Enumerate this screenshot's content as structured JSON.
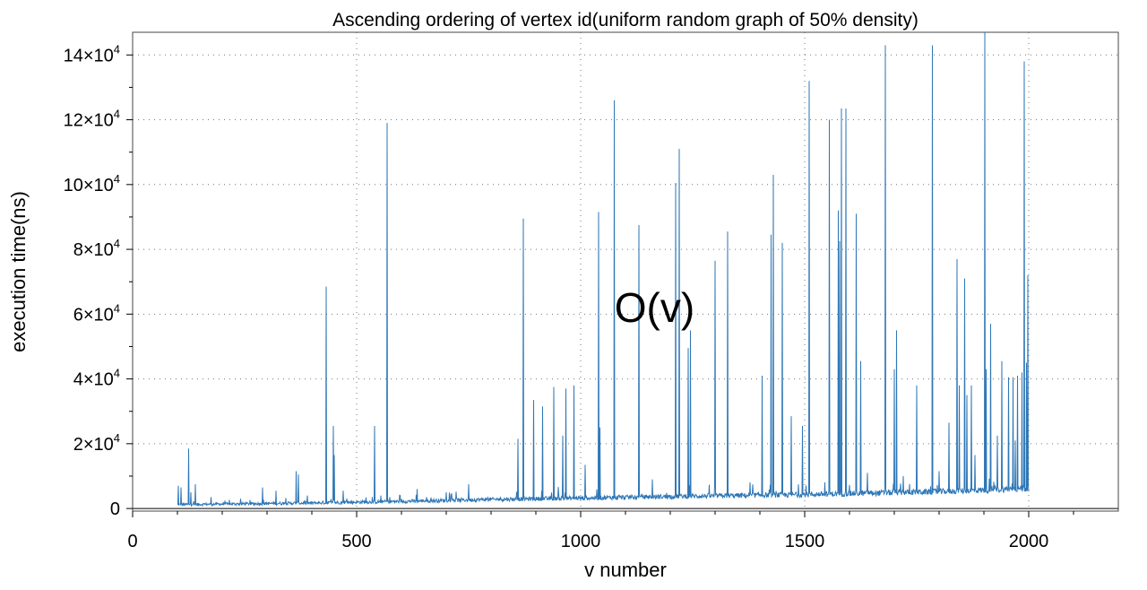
{
  "chart_data": {
    "type": "line",
    "title": "Ascending ordering of vertex id(uniform random graph of 50% density)",
    "xlabel": "v number",
    "ylabel": "execution time(ns)",
    "xlim": [
      0,
      2200
    ],
    "ylim": [
      -800,
      147000
    ],
    "x_ticks": [
      0,
      500,
      1000,
      1500,
      2000
    ],
    "x_tick_labels": [
      "0",
      "500",
      "1000",
      "1500",
      "2000"
    ],
    "y_ticks": [
      0,
      20000,
      40000,
      60000,
      80000,
      100000,
      120000,
      140000
    ],
    "y_tick_labels": [
      {
        "mantissa": "0",
        "exp": ""
      },
      {
        "mantissa": "2×10",
        "exp": "4"
      },
      {
        "mantissa": "4×10",
        "exp": "4"
      },
      {
        "mantissa": "6×10",
        "exp": "4"
      },
      {
        "mantissa": "8×10",
        "exp": "4"
      },
      {
        "mantissa": "10×10",
        "exp": "4"
      },
      {
        "mantissa": "12×10",
        "exp": "4"
      },
      {
        "mantissa": "14×10",
        "exp": "4"
      }
    ],
    "grid": true,
    "annotation": {
      "text": "O(v)",
      "x": 1165,
      "y": 62000
    },
    "color": "#2f77b6",
    "series": [
      {
        "x_start": 100,
        "x_end": 2000,
        "baseline": [
          [
            100,
            1200
          ],
          [
            400,
            1700
          ],
          [
            600,
            2200
          ],
          [
            800,
            2800
          ],
          [
            1000,
            3200
          ],
          [
            1200,
            3700
          ],
          [
            1500,
            4300
          ],
          [
            1800,
            5200
          ],
          [
            2000,
            6200
          ]
        ],
        "noise_amplitude": 1200,
        "spikes": [
          [
            102,
            7000
          ],
          [
            108,
            6500
          ],
          [
            125,
            18500
          ],
          [
            130,
            5000
          ],
          [
            140,
            7500
          ],
          [
            175,
            3500
          ],
          [
            290,
            6500
          ],
          [
            320,
            5500
          ],
          [
            365,
            11500
          ],
          [
            370,
            10500
          ],
          [
            432,
            68500
          ],
          [
            448,
            25500
          ],
          [
            450,
            16500
          ],
          [
            470,
            5500
          ],
          [
            540,
            25500
          ],
          [
            568,
            119000
          ],
          [
            635,
            6000
          ],
          [
            700,
            5000
          ],
          [
            750,
            7500
          ],
          [
            860,
            21500
          ],
          [
            872,
            89500
          ],
          [
            895,
            33500
          ],
          [
            915,
            31500
          ],
          [
            940,
            37500
          ],
          [
            960,
            22500
          ],
          [
            967,
            37000
          ],
          [
            985,
            38000
          ],
          [
            1010,
            13500
          ],
          [
            1040,
            91500
          ],
          [
            1043,
            25000
          ],
          [
            1075,
            126000
          ],
          [
            1130,
            87500
          ],
          [
            1160,
            9000
          ],
          [
            1212,
            100500
          ],
          [
            1220,
            111000
          ],
          [
            1240,
            49500
          ],
          [
            1245,
            55000
          ],
          [
            1300,
            76500
          ],
          [
            1328,
            85500
          ],
          [
            1405,
            41000
          ],
          [
            1425,
            84500
          ],
          [
            1430,
            103000
          ],
          [
            1450,
            82000
          ],
          [
            1470,
            28500
          ],
          [
            1495,
            25500
          ],
          [
            1510,
            132000
          ],
          [
            1555,
            120000
          ],
          [
            1575,
            92000
          ],
          [
            1578,
            82500
          ],
          [
            1582,
            123500
          ],
          [
            1592,
            123500
          ],
          [
            1615,
            91000
          ],
          [
            1625,
            45500
          ],
          [
            1640,
            11000
          ],
          [
            1680,
            143000
          ],
          [
            1700,
            43000
          ],
          [
            1705,
            55000
          ],
          [
            1720,
            10000
          ],
          [
            1750,
            38000
          ],
          [
            1785,
            143000
          ],
          [
            1800,
            11500
          ],
          [
            1822,
            26500
          ],
          [
            1840,
            77000
          ],
          [
            1845,
            38000
          ],
          [
            1857,
            71000
          ],
          [
            1862,
            35000
          ],
          [
            1872,
            38000
          ],
          [
            1880,
            16500
          ],
          [
            1902,
            147000
          ],
          [
            1905,
            43000
          ],
          [
            1915,
            57000
          ],
          [
            1930,
            22500
          ],
          [
            1940,
            45500
          ],
          [
            1955,
            40500
          ],
          [
            1965,
            40500
          ],
          [
            1970,
            21000
          ],
          [
            1975,
            41000
          ],
          [
            1985,
            42000
          ],
          [
            1990,
            138000
          ],
          [
            1995,
            45000
          ],
          [
            1998,
            72000
          ]
        ]
      }
    ]
  }
}
